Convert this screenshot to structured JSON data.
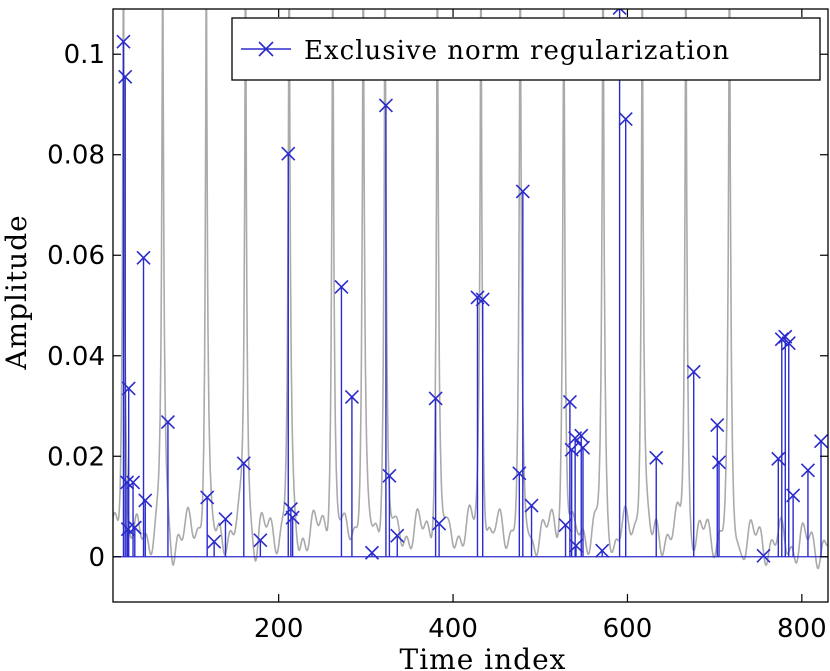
{
  "chart_data": {
    "type": "line",
    "xlabel": "Time index",
    "ylabel": "Amplitude",
    "xlim": [
      10,
      830
    ],
    "ylim": [
      -0.009,
      0.109
    ],
    "xticks": [
      200,
      400,
      600,
      800
    ],
    "xtick_labels": [
      "200",
      "400",
      "600",
      "800"
    ],
    "yticks": [
      0,
      0.02,
      0.04,
      0.06,
      0.08,
      0.1
    ],
    "ytick_labels": [
      "0",
      "0.02",
      "0.04",
      "0.06",
      "0.08",
      "0.1"
    ],
    "grid": false,
    "legend_position": "top-right",
    "colors": {
      "stem": "#2b2bcc",
      "signal": "#aaaaaa"
    },
    "series": [
      {
        "name": "Exclusive norm regularization",
        "style": "stem",
        "points": [
          [
            22,
            0.1025
          ],
          [
            24,
            0.0955
          ],
          [
            26,
            0.0148
          ],
          [
            27,
            0.0055
          ],
          [
            28,
            0.0335
          ],
          [
            33,
            0.0148
          ],
          [
            35,
            0.0058
          ],
          [
            45,
            0.0595
          ],
          [
            47,
            0.0112
          ],
          [
            73,
            0.0268
          ],
          [
            118,
            0.0118
          ],
          [
            126,
            0.003
          ],
          [
            139,
            0.0075
          ],
          [
            160,
            0.0186
          ],
          [
            179,
            0.0033
          ],
          [
            211,
            0.0802
          ],
          [
            214,
            0.0095
          ],
          [
            216,
            0.0078
          ],
          [
            272,
            0.0537
          ],
          [
            284,
            0.0318
          ],
          [
            307,
            0.0008
          ],
          [
            323,
            0.0898
          ],
          [
            327,
            0.0161
          ],
          [
            336,
            0.0042
          ],
          [
            380,
            0.0315
          ],
          [
            384,
            0.0066
          ],
          [
            428,
            0.0516
          ],
          [
            434,
            0.0512
          ],
          [
            476,
            0.0166
          ],
          [
            480,
            0.0727
          ],
          [
            490,
            0.0102
          ],
          [
            529,
            0.0063
          ],
          [
            534,
            0.0308
          ],
          [
            536,
            0.0213
          ],
          [
            540,
            0.0236
          ],
          [
            541,
            0.0022
          ],
          [
            547,
            0.0241
          ],
          [
            549,
            0.0217
          ],
          [
            571,
            0.0012
          ],
          [
            591,
            0.1092
          ],
          [
            598,
            0.0871
          ],
          [
            633,
            0.0197
          ],
          [
            676,
            0.0368
          ],
          [
            703,
            0.0262
          ],
          [
            705,
            0.0188
          ],
          [
            756,
            0.0002
          ],
          [
            773,
            0.0195
          ],
          [
            777,
            0.0433
          ],
          [
            781,
            0.0438
          ],
          [
            785,
            0.0425
          ],
          [
            790,
            0.0122
          ],
          [
            807,
            0.0172
          ],
          [
            822,
            0.023
          ]
        ]
      }
    ]
  }
}
